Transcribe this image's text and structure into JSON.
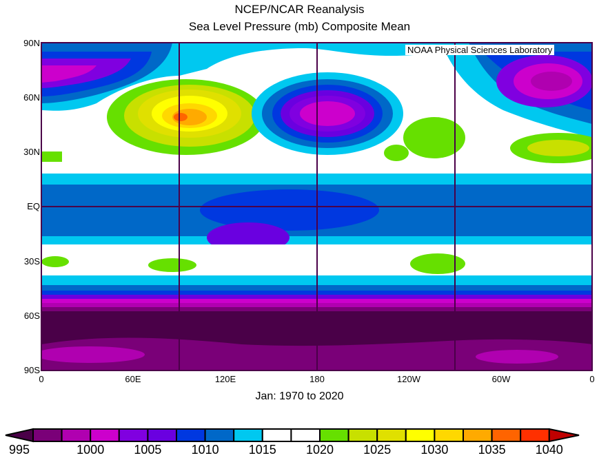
{
  "title": {
    "line1": "NCEP/NCAR Reanalysis",
    "line2": "Sea Level Pressure (mb) Composite Mean"
  },
  "watermark": "NOAA Physical Sciences Laboratory",
  "period": "Jan: 1970 to 2020",
  "lat_labels": [
    "90N",
    "60N",
    "30N",
    "EQ",
    "30S",
    "60S",
    "90S"
  ],
  "lon_labels": [
    "0",
    "60E",
    "120E",
    "180",
    "120W",
    "60W",
    "0"
  ],
  "colorbar": {
    "labels": [
      "995",
      "1000",
      "1005",
      "1010",
      "1015",
      "1020",
      "1025",
      "1030",
      "1035",
      "1040"
    ],
    "below_color": "#4a0048",
    "above_color": "#c00000",
    "colors": [
      "#7a0078",
      "#b000b0",
      "#cc00cc",
      "#8000e0",
      "#6a00e0",
      "#0038e0",
      "#0068c8",
      "#00c8f0",
      "#ffffff",
      "#ffffff",
      "#66e000",
      "#c8e000",
      "#e0e000",
      "#ffff00",
      "#ffd800",
      "#ffaa00",
      "#ff6400",
      "#ff3000"
    ]
  }
}
